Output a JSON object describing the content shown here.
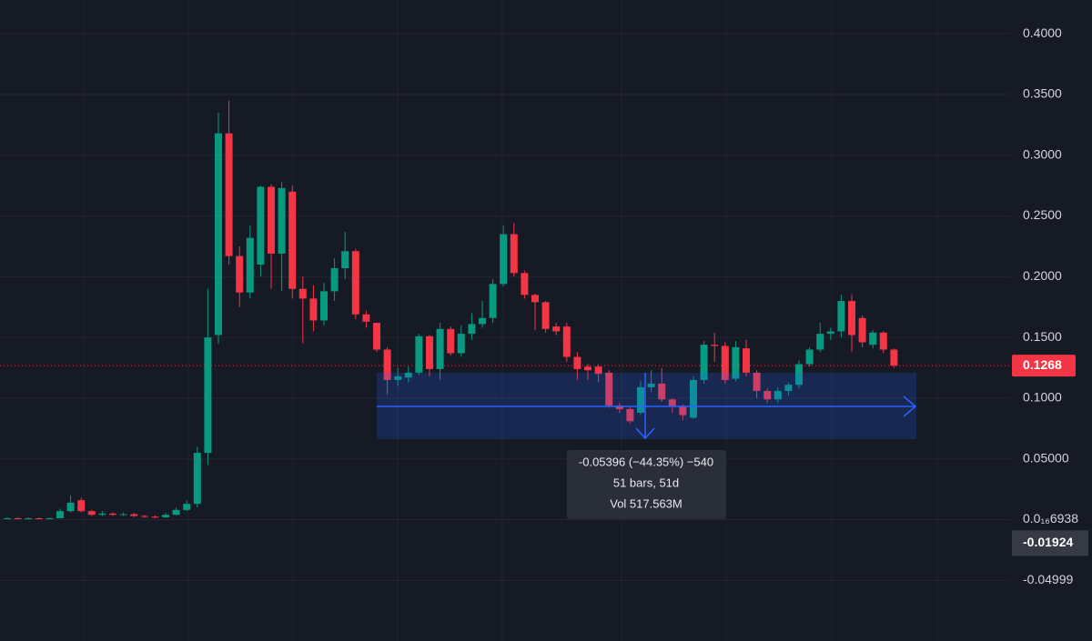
{
  "chart_data": {
    "type": "candlestick",
    "up_color": "#089981",
    "down_color": "#f23645",
    "open": [
      0.001,
      0.0012,
      0.001,
      0.0011,
      0.0009,
      0.0012,
      0.007,
      0.016,
      0.007,
      0.004,
      0.005,
      0.004,
      0.0045,
      0.003,
      0.0025,
      0.002,
      0.004,
      0.008,
      0.013,
      0.055,
      0.152,
      0.318,
      0.217,
      0.187,
      0.21,
      0.274,
      0.219,
      0.27,
      0.19,
      0.182,
      0.164,
      0.188,
      0.207,
      0.221,
      0.169,
      0.162,
      0.14,
      0.115,
      0.117,
      0.121,
      0.151,
      0.124,
      0.157,
      0.137,
      0.153,
      0.161,
      0.166,
      0.194,
      0.235,
      0.203,
      0.185,
      0.179,
      0.159,
      0.159,
      0.134,
      0.126,
      0.126,
      0.121,
      0.094,
      0.091,
      0.088,
      0.109,
      0.112,
      0.099,
      0.093,
      0.084,
      0.115,
      0.144,
      0.143,
      0.116,
      0.141,
      0.121,
      0.106,
      0.099,
      0.106,
      0.111,
      0.128,
      0.14,
      0.153,
      0.155,
      0.18,
      0.166,
      0.144,
      0.154,
      0.14
    ],
    "high": [
      0.002,
      0.002,
      0.0018,
      0.0018,
      0.0016,
      0.009,
      0.02,
      0.018,
      0.008,
      0.007,
      0.006,
      0.006,
      0.0055,
      0.004,
      0.0035,
      0.0055,
      0.01,
      0.016,
      0.06,
      0.19,
      0.335,
      0.345,
      0.225,
      0.242,
      0.275,
      0.276,
      0.278,
      0.275,
      0.2,
      0.193,
      0.195,
      0.215,
      0.237,
      0.223,
      0.172,
      0.162,
      0.142,
      0.125,
      0.126,
      0.153,
      0.152,
      0.162,
      0.159,
      0.16,
      0.17,
      0.18,
      0.198,
      0.242,
      0.244,
      0.205,
      0.186,
      0.18,
      0.162,
      0.162,
      0.138,
      0.128,
      0.128,
      0.123,
      0.096,
      0.093,
      0.114,
      0.123,
      0.125,
      0.1,
      0.095,
      0.118,
      0.147,
      0.154,
      0.146,
      0.147,
      0.148,
      0.123,
      0.108,
      0.109,
      0.113,
      0.131,
      0.142,
      0.162,
      0.158,
      0.185,
      0.185,
      0.168,
      0.156,
      0.155,
      0.141
    ],
    "low": [
      0.0005,
      0.0008,
      0.0006,
      0.0006,
      0.0005,
      0.001,
      0.006,
      0.006,
      0.003,
      0.003,
      0.003,
      0.003,
      0.002,
      0.0015,
      0.001,
      0.0015,
      0.0035,
      0.007,
      0.01,
      0.045,
      0.145,
      0.21,
      0.175,
      0.182,
      0.2,
      0.19,
      0.188,
      0.182,
      0.145,
      0.155,
      0.16,
      0.18,
      0.198,
      0.165,
      0.158,
      0.138,
      0.103,
      0.11,
      0.113,
      0.119,
      0.118,
      0.115,
      0.135,
      0.134,
      0.148,
      0.158,
      0.162,
      0.192,
      0.2,
      0.182,
      0.156,
      0.154,
      0.152,
      0.13,
      0.115,
      0.115,
      0.113,
      0.092,
      0.088,
      0.079,
      0.086,
      0.105,
      0.097,
      0.088,
      0.082,
      0.083,
      0.112,
      0.13,
      0.112,
      0.114,
      0.118,
      0.1,
      0.096,
      0.096,
      0.102,
      0.108,
      0.126,
      0.138,
      0.148,
      0.15,
      0.138,
      0.142,
      0.141,
      0.137,
      0.125
    ],
    "close": [
      0.0012,
      0.001,
      0.0011,
      0.0009,
      0.0012,
      0.007,
      0.014,
      0.007,
      0.004,
      0.005,
      0.004,
      0.0045,
      0.003,
      0.0025,
      0.002,
      0.004,
      0.008,
      0.013,
      0.055,
      0.15,
      0.318,
      0.217,
      0.187,
      0.232,
      0.274,
      0.219,
      0.273,
      0.19,
      0.182,
      0.164,
      0.188,
      0.207,
      0.221,
      0.169,
      0.163,
      0.14,
      0.115,
      0.118,
      0.121,
      0.151,
      0.124,
      0.157,
      0.137,
      0.153,
      0.161,
      0.166,
      0.194,
      0.235,
      0.203,
      0.185,
      0.179,
      0.157,
      0.155,
      0.134,
      0.124,
      0.123,
      0.12,
      0.094,
      0.091,
      0.081,
      0.109,
      0.112,
      0.099,
      0.093,
      0.086,
      0.115,
      0.144,
      0.143,
      0.115,
      0.142,
      0.121,
      0.106,
      0.099,
      0.106,
      0.111,
      0.128,
      0.14,
      0.153,
      0.155,
      0.18,
      0.152,
      0.146,
      0.154,
      0.14,
      0.1268
    ],
    "ylim": [
      -0.0999,
      0.4278
    ],
    "yticks": [
      {
        "value": 0.4,
        "label": "0.4000"
      },
      {
        "value": 0.35,
        "label": "0.3500"
      },
      {
        "value": 0.3,
        "label": "0.3000"
      },
      {
        "value": 0.25,
        "label": "0.2500"
      },
      {
        "value": 0.2,
        "label": "0.2000"
      },
      {
        "value": 0.15,
        "label": "0.1500"
      },
      {
        "value": 0.1,
        "label": "0.1000"
      },
      {
        "value": 0.05,
        "label": "0.05000"
      },
      {
        "value": 0,
        "label": "0.0₁₆6938"
      },
      {
        "value": -0.05,
        "label": "-0.04999"
      }
    ],
    "grid": true,
    "last_price": 0.1268,
    "crosshair_price": -0.01924,
    "measurement": {
      "change": "-0.05396 (−44.35%) −540",
      "bars": "51 bars, 51d",
      "volume": "Vol 517.563M"
    }
  }
}
